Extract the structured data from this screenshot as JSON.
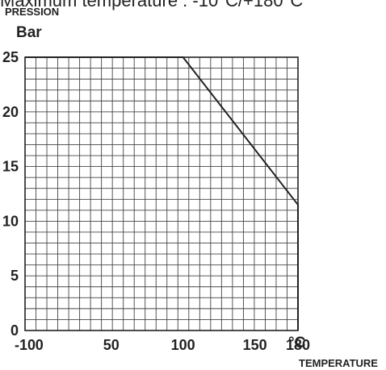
{
  "header": {
    "note": "Maximum temperature : -10°C/+180°C"
  },
  "chart_data": {
    "type": "line",
    "ylabel": "PRESSION",
    "y_unit": "Bar",
    "xlabel": "TEMPERATURE",
    "x_unit": "°C",
    "x_ticks": [
      "-10",
      "0",
      "50",
      "100",
      "150",
      "180"
    ],
    "y_ticks": [
      "0",
      "5",
      "10",
      "15",
      "20",
      "25"
    ],
    "xlim": [
      -10,
      180
    ],
    "ylim": [
      0,
      25
    ],
    "grid": true,
    "series": [
      {
        "x": [
          -10,
          100,
          180,
          180
        ],
        "y": [
          25,
          25,
          11.5,
          0
        ]
      }
    ],
    "colors": {
      "line": "#222222",
      "grid": "#444444",
      "axis": "#222222"
    }
  }
}
